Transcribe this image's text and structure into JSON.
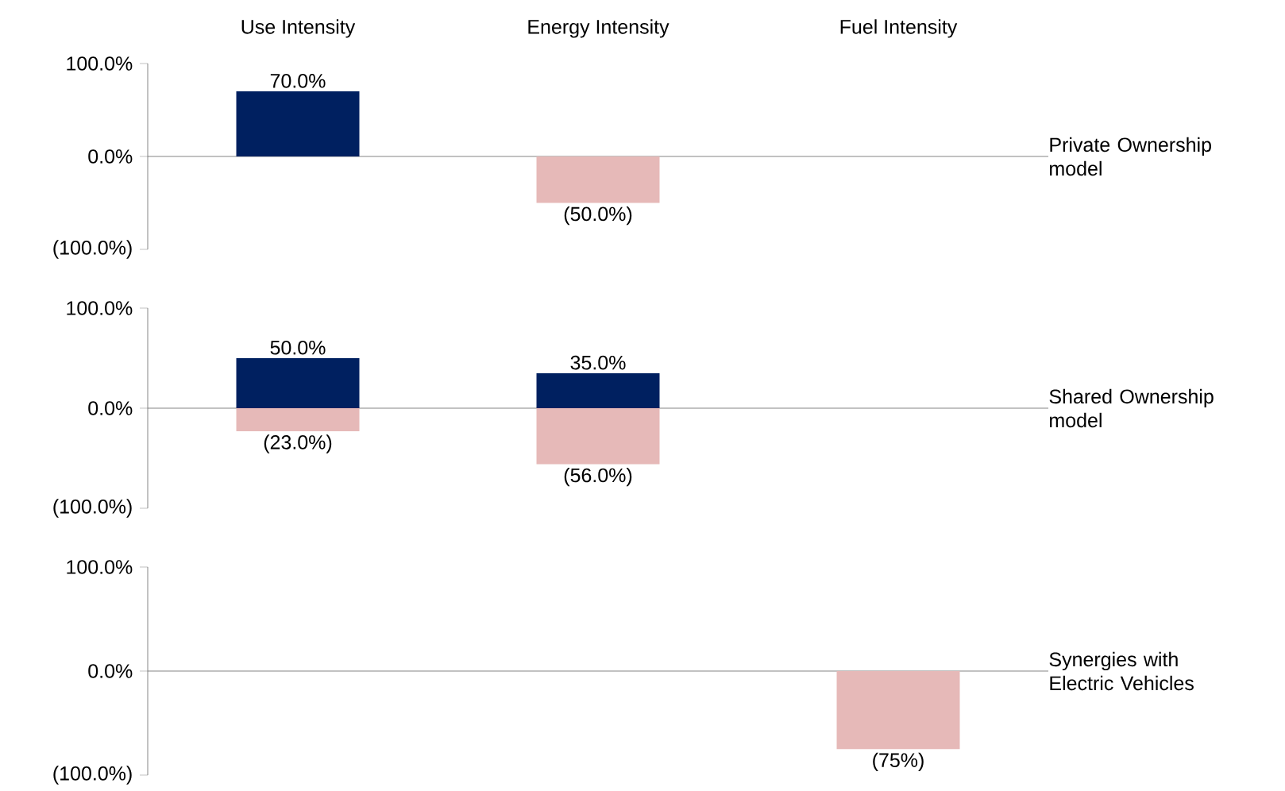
{
  "chart_data": [
    {
      "type": "bar",
      "title": "Private Ownership model",
      "categories": [
        "Use Intensity",
        "Energy Intensity",
        "Fuel Intensity"
      ],
      "stacked": true,
      "series": [
        {
          "color": "#002060",
          "values": [
            70,
            null,
            null
          ],
          "value_labels": [
            "70.0%",
            null,
            null
          ]
        },
        {
          "color": "#e6b9b8",
          "values": [
            null,
            -50,
            null
          ],
          "value_labels": [
            null,
            "(50.0%)",
            null
          ]
        }
      ],
      "ylim": [
        -100,
        100
      ],
      "yticks": [
        {
          "value": -100,
          "label": "(100.0%)"
        },
        {
          "value": 0,
          "label": "0.0%"
        },
        {
          "value": 100,
          "label": "100.0%"
        }
      ]
    },
    {
      "type": "bar",
      "title": "Shared Ownership model",
      "categories": [
        null,
        null,
        null
      ],
      "tick_labels": "y",
      "stacked": true,
      "series": [
        {
          "color": "#002060",
          "values": [
            50,
            35,
            null
          ],
          "value_labels": [
            "50.0%",
            "35.0%",
            null
          ]
        },
        {
          "color": "#e6b9b8",
          "values": [
            -23,
            -56,
            null
          ],
          "value_labels": [
            "(23.0%)",
            "(56.0%)",
            null
          ]
        }
      ],
      "ylim": [
        -100,
        100
      ],
      "yticks": [
        {
          "value": -100,
          "label": "(100.0%)"
        },
        {
          "value": 0,
          "label": "0.0%"
        },
        {
          "value": 100,
          "label": "100.0%"
        }
      ]
    },
    {
      "type": "bar",
      "title": "Synergies with Electric Vehicles",
      "categories": [
        null,
        null,
        null
      ],
      "tick_labels": "y",
      "series": [
        {
          "color": "#e6b9b8",
          "values": [
            null,
            null,
            -75
          ],
          "value_labels": [
            null,
            null,
            "(75%)"
          ]
        }
      ],
      "ylim": [
        -100,
        100
      ],
      "yticks": [
        {
          "value": -100,
          "label": "(100.0%)"
        },
        {
          "value": 0,
          "label": "0.0%"
        },
        {
          "value": 100,
          "label": "100.0%"
        }
      ]
    }
  ]
}
